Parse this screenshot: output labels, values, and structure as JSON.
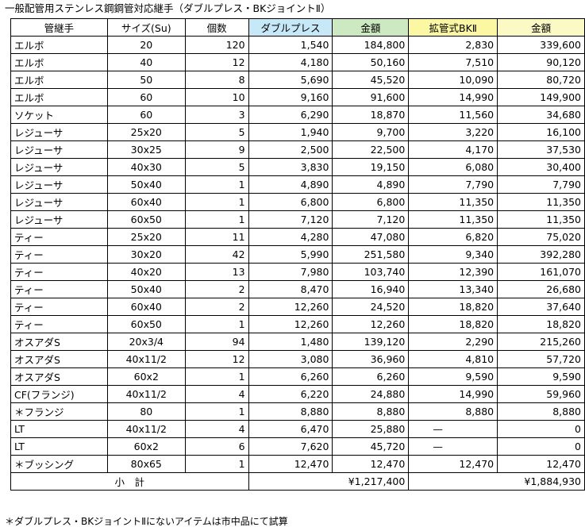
{
  "title": "一般配管用ステンレス鋼鋼管対応継手（ダブルプレス・BKジョイントⅡ）",
  "headers": [
    "管継手",
    "サイズ(Su)",
    "個数",
    "ダブルプレス",
    "金額",
    "拡管式BKⅡ",
    "金額"
  ],
  "header_colors": {
    "double_press": "#c6e8f7",
    "amount1": "#cde9c1",
    "bk": "#fbf7a3",
    "amount2": "#fbf9c4"
  },
  "rows": [
    [
      "エルボ",
      "20",
      "120",
      "1,540",
      "184,800",
      "2,830",
      "339,600"
    ],
    [
      "エルボ",
      "40",
      "12",
      "4,180",
      "50,160",
      "7,510",
      "90,120"
    ],
    [
      "エルボ",
      "50",
      "8",
      "5,690",
      "45,520",
      "10,090",
      "80,720"
    ],
    [
      "エルボ",
      "60",
      "10",
      "9,160",
      "91,600",
      "14,990",
      "149,900"
    ],
    [
      "ソケット",
      "60",
      "3",
      "6,290",
      "18,870",
      "11,560",
      "34,680"
    ],
    [
      "レジューサ",
      "25x20",
      "5",
      "1,940",
      "9,700",
      "3,220",
      "16,100"
    ],
    [
      "レジューサ",
      "30x25",
      "9",
      "2,500",
      "22,500",
      "4,170",
      "37,530"
    ],
    [
      "レジューサ",
      "40x30",
      "5",
      "3,830",
      "19,150",
      "6,080",
      "30,400"
    ],
    [
      "レジューサ",
      "50x40",
      "1",
      "4,890",
      "4,890",
      "7,790",
      "7,790"
    ],
    [
      "レジューサ",
      "60x40",
      "1",
      "6,800",
      "6,800",
      "11,350",
      "11,350"
    ],
    [
      "レジューサ",
      "60x50",
      "1",
      "7,120",
      "7,120",
      "11,350",
      "11,350"
    ],
    [
      "ティー",
      "25x20",
      "11",
      "4,280",
      "47,080",
      "6,820",
      "75,020"
    ],
    [
      "ティー",
      "30x20",
      "42",
      "5,990",
      "251,580",
      "9,340",
      "392,280"
    ],
    [
      "ティー",
      "40x20",
      "13",
      "7,980",
      "103,740",
      "12,390",
      "161,070"
    ],
    [
      "ティー",
      "50x40",
      "2",
      "8,470",
      "16,940",
      "13,340",
      "26,680"
    ],
    [
      "ティー",
      "60x40",
      "2",
      "12,260",
      "24,520",
      "18,820",
      "37,640"
    ],
    [
      "ティー",
      "60x50",
      "1",
      "12,260",
      "12,260",
      "18,820",
      "18,820"
    ],
    [
      "オスアダS",
      "20x3/4",
      "94",
      "1,480",
      "139,120",
      "2,290",
      "215,260"
    ],
    [
      "オスアダS",
      "40x11/2",
      "12",
      "3,080",
      "36,960",
      "4,810",
      "57,720"
    ],
    [
      "オスアダS",
      "60x2",
      "1",
      "6,260",
      "6,260",
      "9,590",
      "9,590"
    ],
    [
      "CF(フランジ)",
      "40x11/2",
      "4",
      "6,220",
      "24,880",
      "14,990",
      "59,960"
    ],
    [
      "＊フランジ",
      "80",
      "1",
      "8,880",
      "8,880",
      "8,880",
      "8,880"
    ],
    [
      "LT",
      "40x11/2",
      "4",
      "6,470",
      "25,880",
      "—",
      "0"
    ],
    [
      "LT",
      "60x2",
      "6",
      "7,620",
      "45,720",
      "—",
      "0"
    ],
    [
      "＊ブッシング",
      "80x65",
      "1",
      "12,470",
      "12,470",
      "12,470",
      "12,470"
    ]
  ],
  "subtotal": {
    "label": "小　計",
    "amount1": "¥1,217,400",
    "amount2": "¥1,884,930"
  },
  "note": "＊ダブルプレス・BKジョイントⅡにないアイテムは市中品にて試算"
}
